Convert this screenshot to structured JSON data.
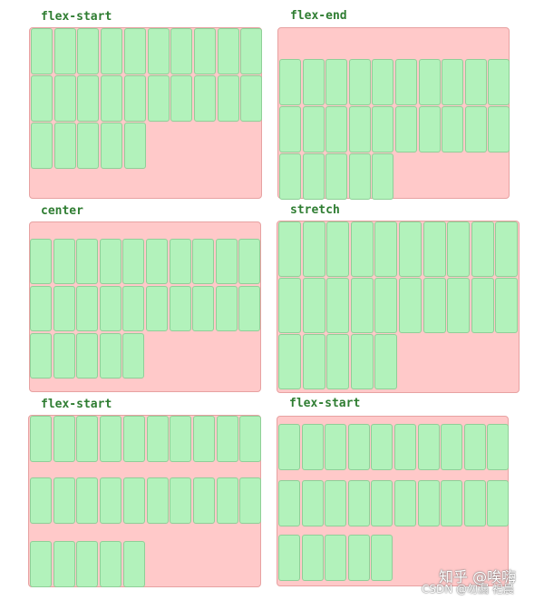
{
  "diagram": {
    "items_per_panel": 25,
    "items_per_row": 10,
    "panels": [
      {
        "id": "p1",
        "label": "flex-start",
        "property": "align-content",
        "value": "flex-start"
      },
      {
        "id": "p2",
        "label": "flex-end",
        "property": "align-content",
        "value": "flex-end"
      },
      {
        "id": "p3",
        "label": "center",
        "property": "align-content",
        "value": "center"
      },
      {
        "id": "p4",
        "label": "stretch",
        "property": "align-content",
        "value": "stretch"
      },
      {
        "id": "p5",
        "label": "flex-start",
        "property": "align-content",
        "value": "flex-start"
      },
      {
        "id": "p6",
        "label": "flex-start",
        "property": "align-content",
        "value": "flex-start"
      }
    ]
  },
  "colors": {
    "container": "#ffc9c9",
    "item": "#b2f2bb",
    "label": "#2f7d32"
  },
  "watermark": {
    "line1": "知乎 @唉嗨",
    "line2": "CSDN @勿漏 祀晨"
  }
}
